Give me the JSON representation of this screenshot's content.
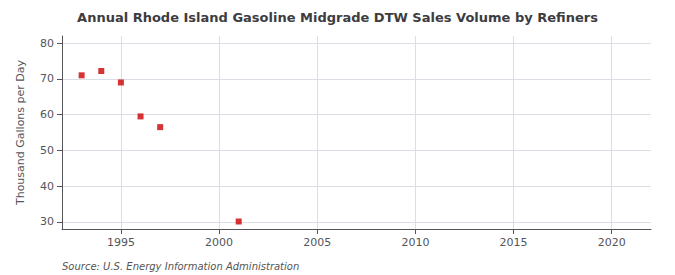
{
  "chart_data": {
    "type": "scatter",
    "title": "Annual Rhode Island Gasoline Midgrade DTW Sales Volume by Refiners",
    "ylabel": "Thousand Gallons per Day",
    "source": "Source: U.S. Energy Information Administration",
    "x": [
      1993,
      1994,
      1995,
      1996,
      1997,
      2001
    ],
    "values": [
      71.0,
      72.2,
      69.0,
      59.5,
      56.5,
      30.1
    ],
    "color": "#cc0000",
    "marker": "square",
    "xlim": [
      1992,
      2022
    ],
    "ylim": [
      28,
      82
    ],
    "xticks": [
      1995,
      2000,
      2005,
      2010,
      2015,
      2020
    ],
    "yticks": [
      30,
      40,
      50,
      60,
      70,
      80
    ],
    "grid": true
  }
}
